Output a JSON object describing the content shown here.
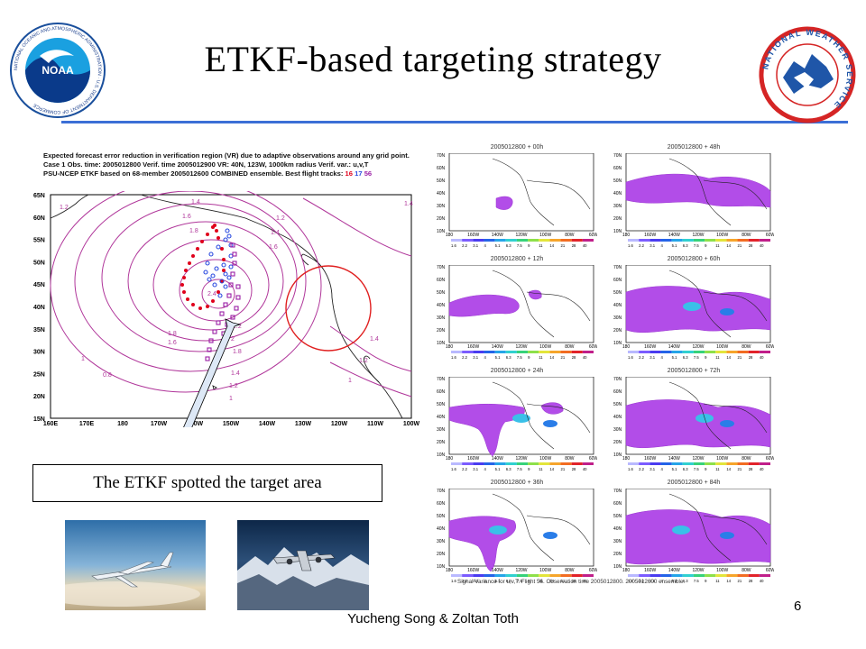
{
  "slide": {
    "title": "ETKF-based targeting strategy",
    "footer": "Yucheng Song & Zoltan Toth",
    "page_number": "6",
    "callout": "The ETKF spotted the target area",
    "accent_rule_color": "#3b6fd6"
  },
  "logos": {
    "left": "NOAA",
    "right": "NATIONAL WEATHER SERVICE"
  },
  "left_figure": {
    "header_line1": "Expected forecast error reduction in verification region (VR) due to adaptive observations around any grid point.",
    "header_line2": "Case 1  Obs. time: 2005012800  Verif. time 2005012900  VR: 40N, 123W, 1000km radius  Verif. var.: u,v,T",
    "header_line3_a": "PSU-NCEP ETKF based on 68-member 2005012600 COMBINED ensemble.  Best flight tracks: ",
    "track1": "16",
    "track2": "17",
    "track3": "56",
    "lat_labels": [
      "65N",
      "60N",
      "55N",
      "50N",
      "45N",
      "40N",
      "35N",
      "30N",
      "25N",
      "20N",
      "15N"
    ],
    "lon_labels": [
      "160E",
      "170E",
      "180",
      "170W",
      "160W",
      "150W",
      "140W",
      "130W",
      "120W",
      "110W",
      "100W"
    ],
    "contour_labels": [
      "1.2",
      "1.4",
      "1.6",
      "1.8",
      "1.2",
      "1.4",
      "1.6",
      "2.4",
      "2.2",
      "2",
      "1.8",
      "1.8",
      "1.6",
      "1.4",
      "1.2",
      "1",
      "1",
      "0.8",
      "1",
      "1.2",
      "1.4",
      "1.4"
    ]
  },
  "right_grid": {
    "panels": [
      {
        "title": "2005012800 + 00h"
      },
      {
        "title": "2005012800 + 48h"
      },
      {
        "title": "2005012800 + 12h"
      },
      {
        "title": "2005012800 + 60h"
      },
      {
        "title": "2005012800 + 24h"
      },
      {
        "title": "2005012800 + 72h"
      },
      {
        "title": "2005012800 + 36h"
      },
      {
        "title": "2005012800 + 84h"
      }
    ],
    "lat_labels": [
      "70N",
      "60N",
      "50N",
      "40N",
      "30N",
      "20N",
      "10N"
    ],
    "lon_labels": [
      "180",
      "160W",
      "140W",
      "120W",
      "100W",
      "80W",
      "60W"
    ],
    "colorbar_labels": [
      "1.6",
      "2.2",
      "3.1",
      "4",
      "5.1",
      "6.3",
      "7.5",
      "9",
      "11",
      "14",
      "21",
      "28",
      "40"
    ],
    "colorbar_colors": [
      "#b9b9ff",
      "#7b5cff",
      "#4a3cf0",
      "#2464e8",
      "#25a5e8",
      "#31d0d0",
      "#37d27a",
      "#8ee04a",
      "#e3e53b",
      "#f6a52b",
      "#f26c22",
      "#e2232a",
      "#c01f8a"
    ],
    "caption": "Signal Variance for u,v,T. Flight 56. Observation time 2005012800. 2005012600 ensemble."
  }
}
